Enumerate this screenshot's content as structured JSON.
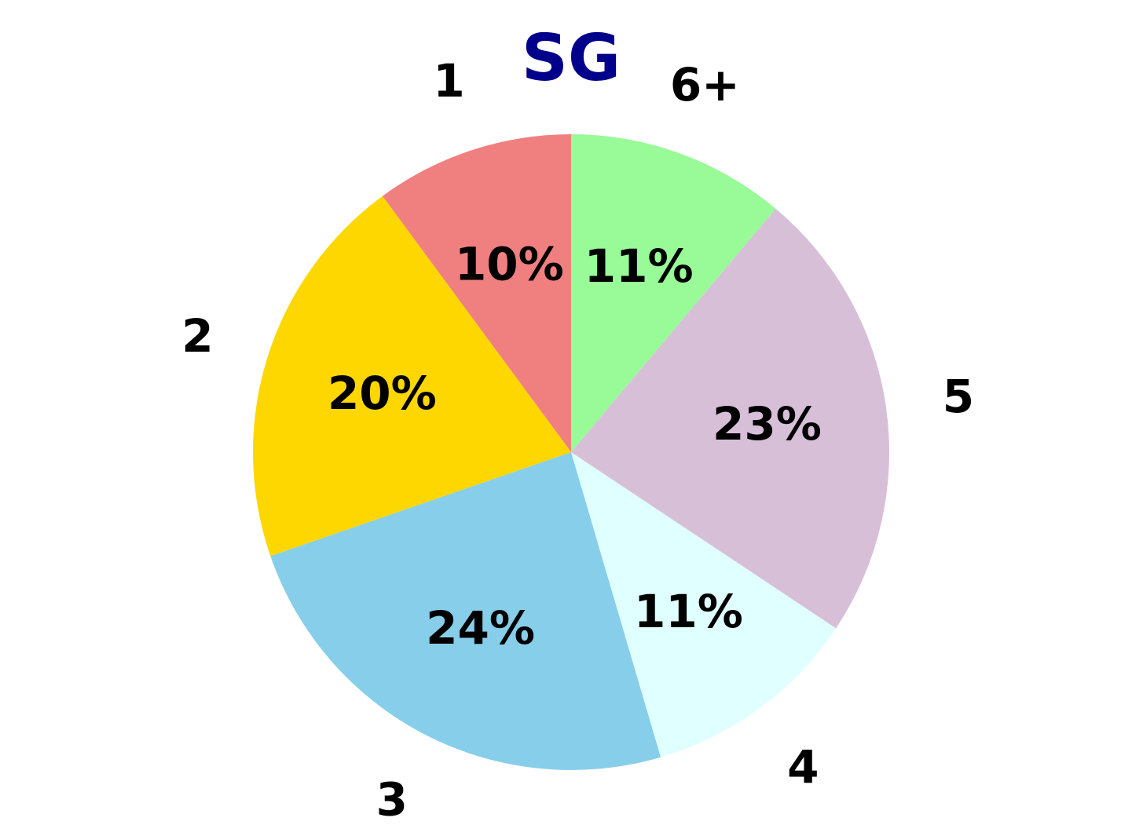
{
  "chart_data": {
    "type": "pie",
    "title": "SG",
    "start_angle_deg": 90,
    "direction": "counterclockwise",
    "slices": [
      {
        "label": "1",
        "value": 10,
        "value_label": "10%",
        "color": "#f08080"
      },
      {
        "label": "2",
        "value": 20,
        "value_label": "20%",
        "color": "#ffd700"
      },
      {
        "label": "3",
        "value": 24,
        "value_label": "24%",
        "color": "#87ceeb"
      },
      {
        "label": "4",
        "value": 11,
        "value_label": "11%",
        "color": "#e0ffff"
      },
      {
        "label": "5",
        "value": 23,
        "value_label": "23%",
        "color": "#d8bfd8"
      },
      {
        "label": "6+",
        "value": 11,
        "value_label": "11%",
        "color": "#98fb98"
      }
    ],
    "colors": {
      "title": "#00008b",
      "text": "#000000",
      "background": "#ffffff"
    }
  }
}
